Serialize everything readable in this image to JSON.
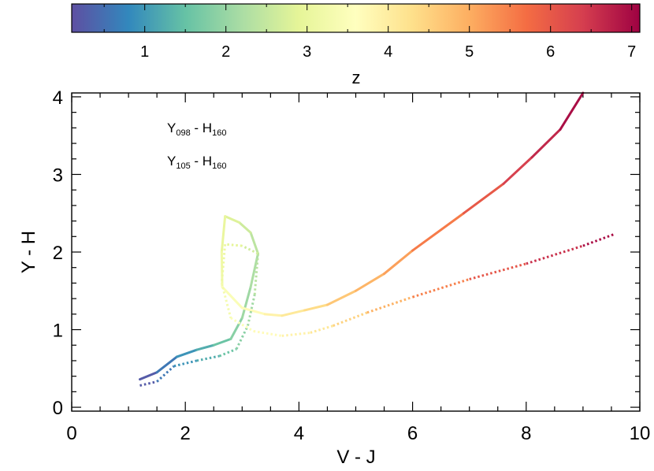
{
  "chart_data": {
    "type": "line",
    "xlabel": "V - J",
    "ylabel": "Y - H",
    "xlim": [
      0,
      10
    ],
    "ylim": [
      -0.05,
      4.05
    ],
    "x_ticks": [
      0,
      2,
      4,
      6,
      8,
      10
    ],
    "y_ticks": [
      0,
      1,
      2,
      3,
      4
    ],
    "colorbar": {
      "label": "z",
      "range": [
        0.1,
        7.1
      ],
      "ticks": [
        1,
        2,
        3,
        4,
        5,
        6,
        7
      ],
      "colormap": [
        "#5e4fa2",
        "#3288bd",
        "#66c2a5",
        "#abdda4",
        "#e6f598",
        "#ffffbf",
        "#fee08b",
        "#fdae61",
        "#f46d43",
        "#d53e4f",
        "#9e0142"
      ]
    },
    "legend_position": "top-left",
    "series": [
      {
        "name_main": "Y",
        "name_sub1": "098",
        "name_mid": " - H",
        "name_sub2": "160",
        "style": "solid",
        "points": [
          {
            "x": 1.2,
            "y": 0.36,
            "z": 0.1
          },
          {
            "x": 1.5,
            "y": 0.45,
            "z": 0.4
          },
          {
            "x": 1.85,
            "y": 0.65,
            "z": 0.8
          },
          {
            "x": 2.2,
            "y": 0.74,
            "z": 1.1
          },
          {
            "x": 2.5,
            "y": 0.8,
            "z": 1.4
          },
          {
            "x": 2.8,
            "y": 0.88,
            "z": 1.7
          },
          {
            "x": 3.0,
            "y": 1.15,
            "z": 2.0
          },
          {
            "x": 3.15,
            "y": 1.55,
            "z": 2.15
          },
          {
            "x": 3.28,
            "y": 1.98,
            "z": 2.3
          },
          {
            "x": 3.15,
            "y": 2.25,
            "z": 2.5
          },
          {
            "x": 2.95,
            "y": 2.38,
            "z": 2.7
          },
          {
            "x": 2.7,
            "y": 2.46,
            "z": 2.9
          },
          {
            "x": 2.64,
            "y": 2.0,
            "z": 3.1
          },
          {
            "x": 2.65,
            "y": 1.55,
            "z": 3.3
          },
          {
            "x": 3.0,
            "y": 1.28,
            "z": 3.6
          },
          {
            "x": 3.4,
            "y": 1.2,
            "z": 3.8
          },
          {
            "x": 3.7,
            "y": 1.18,
            "z": 4.0
          },
          {
            "x": 4.1,
            "y": 1.25,
            "z": 4.2
          },
          {
            "x": 4.5,
            "y": 1.32,
            "z": 4.5
          },
          {
            "x": 5.0,
            "y": 1.5,
            "z": 4.8
          },
          {
            "x": 5.5,
            "y": 1.72,
            "z": 5.0
          },
          {
            "x": 6.0,
            "y": 2.02,
            "z": 5.3
          },
          {
            "x": 6.9,
            "y": 2.5,
            "z": 5.8
          },
          {
            "x": 7.6,
            "y": 2.88,
            "z": 6.2
          },
          {
            "x": 8.1,
            "y": 3.22,
            "z": 6.5
          },
          {
            "x": 8.6,
            "y": 3.58,
            "z": 6.8
          },
          {
            "x": 9.0,
            "y": 4.05,
            "z": 7.1
          }
        ]
      },
      {
        "name_main": "Y",
        "name_sub1": "105",
        "name_mid": " - H",
        "name_sub2": "160",
        "style": "dotted",
        "points": [
          {
            "x": 1.2,
            "y": 0.28,
            "z": 0.1
          },
          {
            "x": 1.5,
            "y": 0.33,
            "z": 0.4
          },
          {
            "x": 1.8,
            "y": 0.53,
            "z": 0.8
          },
          {
            "x": 2.2,
            "y": 0.6,
            "z": 1.1
          },
          {
            "x": 2.6,
            "y": 0.66,
            "z": 1.4
          },
          {
            "x": 2.9,
            "y": 0.75,
            "z": 1.7
          },
          {
            "x": 3.1,
            "y": 1.05,
            "z": 2.0
          },
          {
            "x": 3.22,
            "y": 1.45,
            "z": 2.2
          },
          {
            "x": 3.28,
            "y": 1.98,
            "z": 2.5
          },
          {
            "x": 3.0,
            "y": 2.08,
            "z": 2.8
          },
          {
            "x": 2.7,
            "y": 2.1,
            "z": 3.0
          },
          {
            "x": 2.64,
            "y": 1.6,
            "z": 3.2
          },
          {
            "x": 2.8,
            "y": 1.15,
            "z": 3.4
          },
          {
            "x": 3.2,
            "y": 0.98,
            "z": 3.6
          },
          {
            "x": 3.7,
            "y": 0.92,
            "z": 3.8
          },
          {
            "x": 4.2,
            "y": 0.96,
            "z": 4.0
          },
          {
            "x": 4.6,
            "y": 1.05,
            "z": 4.3
          },
          {
            "x": 5.2,
            "y": 1.22,
            "z": 4.7
          },
          {
            "x": 6.0,
            "y": 1.42,
            "z": 5.2
          },
          {
            "x": 7.0,
            "y": 1.65,
            "z": 5.8
          },
          {
            "x": 8.0,
            "y": 1.85,
            "z": 6.3
          },
          {
            "x": 9.0,
            "y": 2.08,
            "z": 6.8
          },
          {
            "x": 9.55,
            "y": 2.23,
            "z": 7.1
          }
        ]
      }
    ]
  }
}
